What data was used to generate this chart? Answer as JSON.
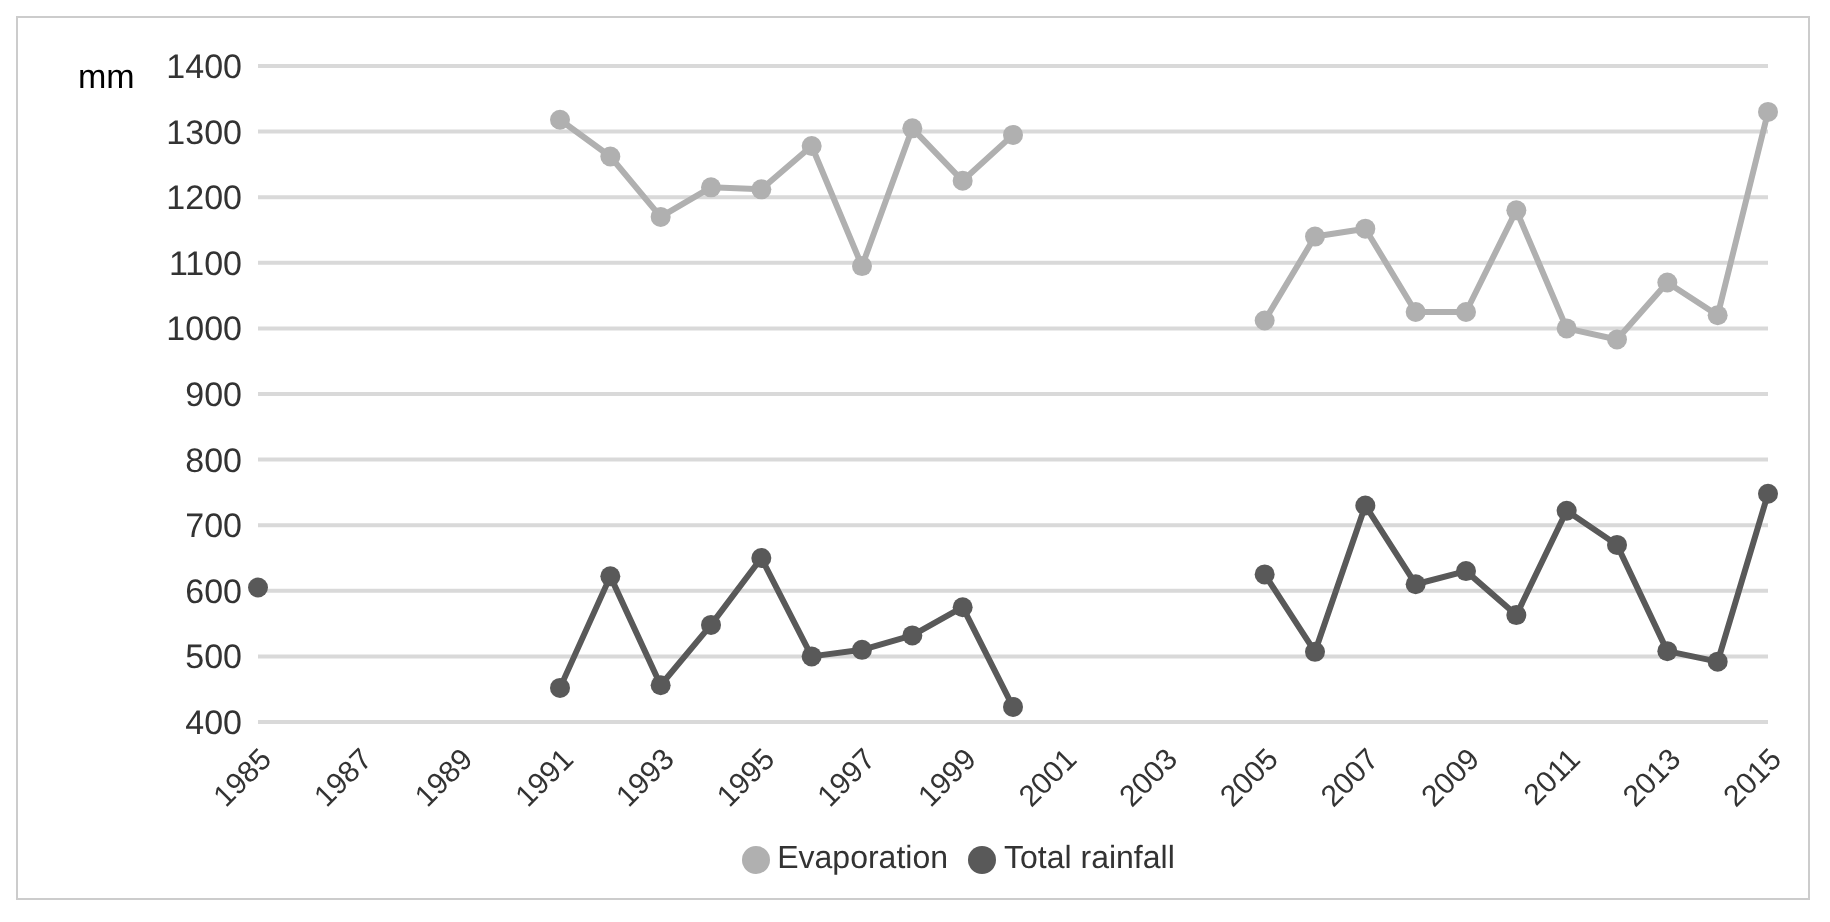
{
  "chart_data": {
    "type": "line",
    "ylabel": "mm",
    "categories": [
      "1985",
      null,
      "1987",
      null,
      "1989",
      null,
      "1991",
      null,
      "1993",
      null,
      "1995",
      null,
      "1997",
      null,
      "1999",
      null,
      "2001",
      null,
      "2003",
      null,
      "2005",
      null,
      "2007",
      null,
      "2009",
      null,
      "2011",
      null,
      "2013",
      null,
      "2015"
    ],
    "series": [
      {
        "name": "Evaporation",
        "color": "#b0b0b0",
        "values": [
          null,
          null,
          null,
          null,
          null,
          null,
          1318,
          1262,
          1170,
          1215,
          1212,
          1278,
          1095,
          1305,
          1225,
          1295,
          null,
          null,
          null,
          null,
          1012,
          1140,
          1152,
          1025,
          1025,
          1180,
          1000,
          983,
          1070,
          1020,
          1330
        ]
      },
      {
        "name": "Total rainfall",
        "color": "#595959",
        "values": [
          605,
          null,
          null,
          null,
          null,
          null,
          452,
          622,
          456,
          548,
          650,
          500,
          510,
          532,
          575,
          423,
          null,
          null,
          null,
          null,
          625,
          507,
          730,
          610,
          630,
          563,
          722,
          670,
          508,
          492,
          748
        ]
      }
    ],
    "ylim": [
      400,
      1400
    ],
    "yticks": [
      400,
      500,
      600,
      700,
      800,
      900,
      1000,
      1100,
      1200,
      1300,
      1400
    ],
    "grid": "y",
    "legend": "bottom",
    "marker": "circle",
    "line_style": "solid"
  }
}
